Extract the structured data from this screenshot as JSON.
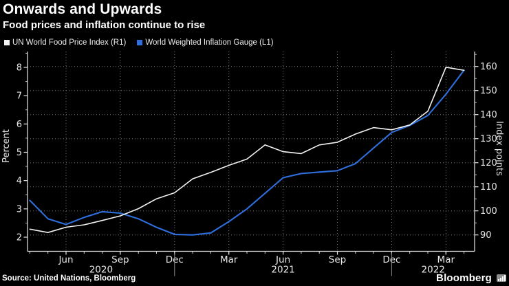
{
  "header": {
    "title": "Onwards and Upwards",
    "subtitle": "Food prices and inflation continue to rise"
  },
  "legend": [
    {
      "label": "UN World Food Price Index (R1)",
      "color": "#f2f2f2"
    },
    {
      "label": "World Weighted Inflation Gauge (L1)",
      "color": "#2e6fdd"
    }
  ],
  "footer": {
    "source": "Source: United Nations, Bloomberg",
    "brand": "Bloomberg"
  },
  "chart_data": {
    "type": "line",
    "title": "Onwards and Upwards",
    "subtitle": "Food prices and inflation continue to rise",
    "grid": "dotted, horizontal lines at right-axis majors, vertical lines at quarter ticks",
    "legend_position": "top-left",
    "x_months": [
      "Apr 2020",
      "May 2020",
      "Jun 2020",
      "Jul 2020",
      "Aug 2020",
      "Sep 2020",
      "Oct 2020",
      "Nov 2020",
      "Dec 2020",
      "Jan 2021",
      "Feb 2021",
      "Mar 2021",
      "Apr 2021",
      "May 2021",
      "Jun 2021",
      "Jul 2021",
      "Aug 2021",
      "Sep 2021",
      "Oct 2021",
      "Nov 2021",
      "Dec 2021",
      "Jan 2022",
      "Feb 2022",
      "Mar 2022",
      "Apr 2022"
    ],
    "quarter_ticks": [
      {
        "label": "Jun",
        "i": 2
      },
      {
        "label": "Sep",
        "i": 5
      },
      {
        "label": "Dec",
        "i": 8
      },
      {
        "label": "Mar",
        "i": 11
      },
      {
        "label": "Jun",
        "i": 14
      },
      {
        "label": "Sep",
        "i": 17
      },
      {
        "label": "Dec",
        "i": 20
      },
      {
        "label": "Mar",
        "i": 23
      }
    ],
    "years": [
      "2020",
      "2021",
      "2022"
    ],
    "year_divider_month_indices": [
      8,
      20
    ],
    "left_axis": {
      "label": "Percent",
      "major_ticks": [
        2,
        3,
        4,
        5,
        6,
        7,
        8
      ],
      "minor_ticks": [
        2.5,
        3.5,
        4.5,
        5.5,
        6.5,
        7.5,
        8.5
      ],
      "range": [
        1.5,
        8.55
      ]
    },
    "right_axis": {
      "label": "Index points",
      "major_ticks": [
        90,
        100,
        110,
        120,
        130,
        140,
        150,
        160
      ],
      "minor_ticks": [
        95,
        105,
        115,
        125,
        135,
        145,
        155,
        165
      ],
      "range": [
        83,
        166
      ]
    },
    "series": [
      {
        "name": "World Weighted Inflation Gauge (L1)",
        "axis": "left",
        "unit": "percent",
        "color": "#2e6fdd",
        "width": 2.1,
        "values": [
          3.3,
          2.65,
          2.45,
          2.7,
          2.9,
          2.85,
          2.65,
          2.35,
          2.1,
          2.08,
          2.15,
          2.55,
          3.0,
          3.55,
          4.1,
          4.25,
          4.3,
          4.35,
          4.6,
          5.15,
          5.7,
          5.95,
          6.3,
          7.05,
          7.9
        ]
      },
      {
        "name": "UN World Food Price Index (R1)",
        "axis": "right",
        "unit": "index points",
        "color": "#f2f2f2",
        "width": 1.6,
        "values": [
          92.4,
          91.0,
          93.2,
          94.2,
          96.0,
          97.9,
          100.9,
          105.0,
          107.5,
          113.3,
          116.0,
          118.9,
          121.5,
          127.4,
          124.6,
          123.8,
          127.4,
          128.5,
          131.9,
          134.6,
          133.7,
          135.7,
          141.4,
          159.7,
          158.4
        ]
      }
    ]
  }
}
